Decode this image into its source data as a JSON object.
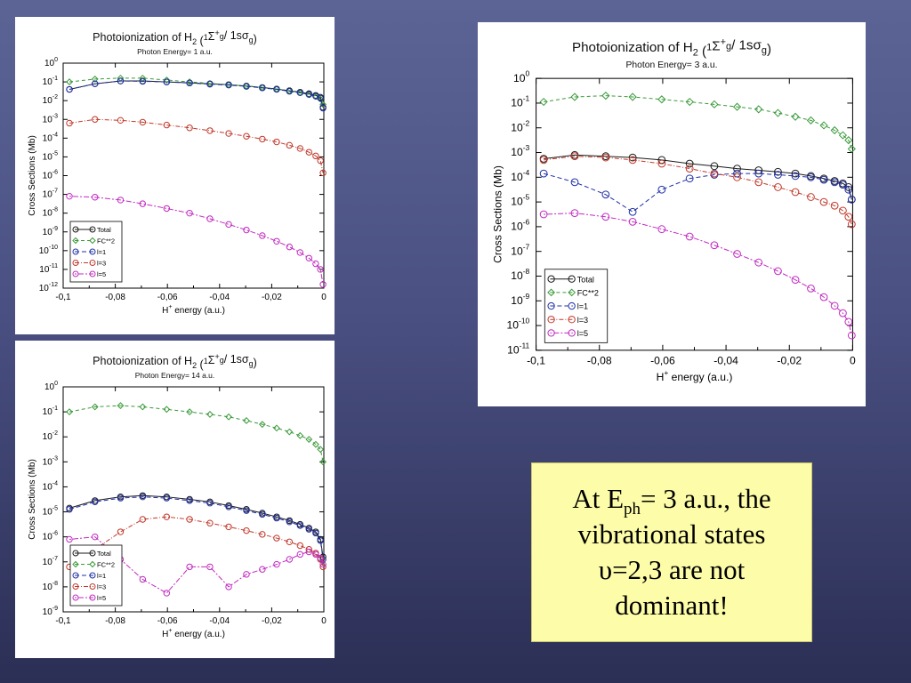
{
  "colors": {
    "Total": "#1a1a1a",
    "FC**2": "#3a9a3a",
    "l=1": "#1f2fa8",
    "l=3": "#c0392b",
    "l=5": "#c02bc0"
  },
  "note": {
    "line1_pre": "At E",
    "line1_sub": "ph",
    "line1_post": "= 3 a.u., the",
    "line2": "vibrational states",
    "line3": "υ=2,3 are not",
    "line4": "dominant!"
  },
  "chart_data": [
    {
      "type": "line",
      "title": "Photoionization of H2 (1Σ+g / 1sσg)",
      "subtitle": "Photon Energy= 1 a.u.",
      "xlabel": "H+ energy (a.u.)",
      "ylabel": "Cross Sections (Mb)",
      "xlim": [
        -0.1,
        0
      ],
      "ylim_exp": [
        -12,
        0
      ],
      "log_y": true,
      "xticks": [
        "-0,1",
        "-0,08",
        "-0,06",
        "-0,04",
        "-0,02",
        "0"
      ],
      "legend_position": "bottom-left",
      "x": [
        -0.0976,
        -0.0878,
        -0.078,
        -0.0695,
        -0.0603,
        -0.0515,
        -0.0437,
        -0.0365,
        -0.0297,
        -0.0236,
        -0.0181,
        -0.0132,
        -0.0091,
        -0.0057,
        -0.0031,
        -0.0013,
        -0.0003
      ],
      "series": [
        {
          "name": "Total",
          "log_values": [
            -1.4,
            -1.1,
            -0.95,
            -0.95,
            -1,
            -1.05,
            -1.1,
            -1.15,
            -1.22,
            -1.3,
            -1.38,
            -1.47,
            -1.55,
            -1.63,
            -1.72,
            -1.82,
            -2.35
          ]
        },
        {
          "name": "FC**2",
          "log_values": [
            -1.0,
            -0.85,
            -0.8,
            -0.8,
            -0.9,
            -1.0,
            -1.08,
            -1.15,
            -1.22,
            -1.3,
            -1.38,
            -1.48,
            -1.58,
            -1.68,
            -1.78,
            -1.92,
            -2.2
          ]
        },
        {
          "name": "l=1",
          "log_values": [
            -1.4,
            -1.1,
            -0.95,
            -0.97,
            -1,
            -1.06,
            -1.12,
            -1.17,
            -1.24,
            -1.32,
            -1.4,
            -1.5,
            -1.58,
            -1.67,
            -1.76,
            -1.87,
            -2.4
          ]
        },
        {
          "name": "l=3",
          "log_values": [
            -3.2,
            -3.0,
            -3.05,
            -3.15,
            -3.3,
            -3.45,
            -3.6,
            -3.75,
            -3.9,
            -4.05,
            -4.2,
            -4.38,
            -4.55,
            -4.75,
            -4.95,
            -5.2,
            -5.85
          ]
        },
        {
          "name": "l=5",
          "log_values": [
            -7.1,
            -7.15,
            -7.3,
            -7.5,
            -7.75,
            -8.0,
            -8.3,
            -8.6,
            -8.9,
            -9.2,
            -9.5,
            -9.8,
            -10.1,
            -10.4,
            -10.7,
            -11.0,
            -11.8
          ]
        }
      ]
    },
    {
      "type": "line",
      "title": "Photoionization of H2 (1Σ+g / 1sσg)",
      "subtitle": "Photon Energy= 3 a.u.",
      "xlabel": "H+ energy (a.u.)",
      "ylabel": "Cross Sections (Mb)",
      "xlim": [
        -0.1,
        0
      ],
      "ylim_exp": [
        -11,
        0
      ],
      "log_y": true,
      "xticks": [
        "-0,1",
        "-0,08",
        "-0,06",
        "-0,04",
        "-0,02",
        "0"
      ],
      "legend_position": "bottom-left",
      "x": [
        -0.0976,
        -0.0878,
        -0.078,
        -0.0695,
        -0.0603,
        -0.0515,
        -0.0437,
        -0.0365,
        -0.0297,
        -0.0236,
        -0.0181,
        -0.0132,
        -0.0091,
        -0.0057,
        -0.0031,
        -0.0013,
        -0.0003
      ],
      "series": [
        {
          "name": "Total",
          "log_values": [
            -3.25,
            -3.1,
            -3.15,
            -3.2,
            -3.3,
            -3.45,
            -3.55,
            -3.65,
            -3.72,
            -3.78,
            -3.85,
            -3.95,
            -4.05,
            -4.15,
            -4.25,
            -4.4,
            -4.9
          ]
        },
        {
          "name": "FC**2",
          "log_values": [
            -0.95,
            -0.75,
            -0.7,
            -0.75,
            -0.85,
            -0.95,
            -1.05,
            -1.15,
            -1.25,
            -1.4,
            -1.55,
            -1.7,
            -1.9,
            -2.1,
            -2.3,
            -2.5,
            -2.85
          ]
        },
        {
          "name": "l=1",
          "log_values": [
            -3.85,
            -4.2,
            -4.7,
            -5.4,
            -4.5,
            -4.05,
            -3.9,
            -3.85,
            -3.85,
            -3.9,
            -3.95,
            -4.0,
            -4.1,
            -4.2,
            -4.3,
            -4.5,
            -4.9
          ]
        },
        {
          "name": "l=3",
          "log_values": [
            -3.3,
            -3.15,
            -3.2,
            -3.3,
            -3.45,
            -3.65,
            -3.85,
            -4.0,
            -4.2,
            -4.4,
            -4.6,
            -4.8,
            -5.0,
            -5.15,
            -5.35,
            -5.6,
            -5.9
          ]
        },
        {
          "name": "l=5",
          "log_values": [
            -5.5,
            -5.45,
            -5.6,
            -5.8,
            -6.1,
            -6.4,
            -6.75,
            -7.1,
            -7.45,
            -7.8,
            -8.15,
            -8.5,
            -8.85,
            -9.2,
            -9.5,
            -9.85,
            -10.4
          ]
        }
      ]
    },
    {
      "type": "line",
      "title": "Photoionization of H2 (1Σ+g / 1sσg)",
      "subtitle": "Photon Energy= 14 a.u.",
      "xlabel": "H+ energy (a.u.)",
      "ylabel": "Cross Sections (Mb)",
      "xlim": [
        -0.1,
        0
      ],
      "ylim_exp": [
        -9,
        0
      ],
      "log_y": true,
      "xticks": [
        "-0,1",
        "-0,08",
        "-0,06",
        "-0,04",
        "-0,02",
        "0"
      ],
      "legend_position": "bottom-left",
      "x": [
        -0.0976,
        -0.0878,
        -0.078,
        -0.0695,
        -0.0603,
        -0.0515,
        -0.0437,
        -0.0365,
        -0.0297,
        -0.0236,
        -0.0181,
        -0.0132,
        -0.0091,
        -0.0057,
        -0.0031,
        -0.0013,
        -0.0003
      ],
      "series": [
        {
          "name": "Total",
          "log_values": [
            -4.85,
            -4.55,
            -4.4,
            -4.35,
            -4.4,
            -4.5,
            -4.6,
            -4.75,
            -4.9,
            -5.05,
            -5.2,
            -5.35,
            -5.5,
            -5.65,
            -5.8,
            -6.1,
            -6.8
          ]
        },
        {
          "name": "FC**2",
          "log_values": [
            -1.0,
            -0.8,
            -0.75,
            -0.8,
            -0.9,
            -1.0,
            -1.1,
            -1.2,
            -1.35,
            -1.5,
            -1.65,
            -1.8,
            -1.95,
            -2.1,
            -2.3,
            -2.5,
            -3.0
          ]
        },
        {
          "name": "l=1",
          "log_values": [
            -4.9,
            -4.6,
            -4.45,
            -4.4,
            -4.45,
            -4.55,
            -4.65,
            -4.8,
            -4.95,
            -5.1,
            -5.25,
            -5.4,
            -5.55,
            -5.7,
            -5.85,
            -6.15,
            -6.9
          ]
        },
        {
          "name": "l=3",
          "log_values": [
            -7.2,
            -6.5,
            -5.8,
            -5.3,
            -5.2,
            -5.3,
            -5.45,
            -5.6,
            -5.75,
            -5.9,
            -6.05,
            -6.2,
            -6.35,
            -6.5,
            -6.65,
            -6.9,
            -7.2
          ]
        },
        {
          "name": "l=5",
          "log_values": [
            -6.1,
            -6.0,
            -6.9,
            -7.7,
            -8.25,
            -7.2,
            -7.2,
            -8.0,
            -7.5,
            -7.3,
            -7.1,
            -6.9,
            -6.7,
            -6.6,
            -6.7,
            -6.85,
            -7.1
          ]
        }
      ]
    }
  ]
}
